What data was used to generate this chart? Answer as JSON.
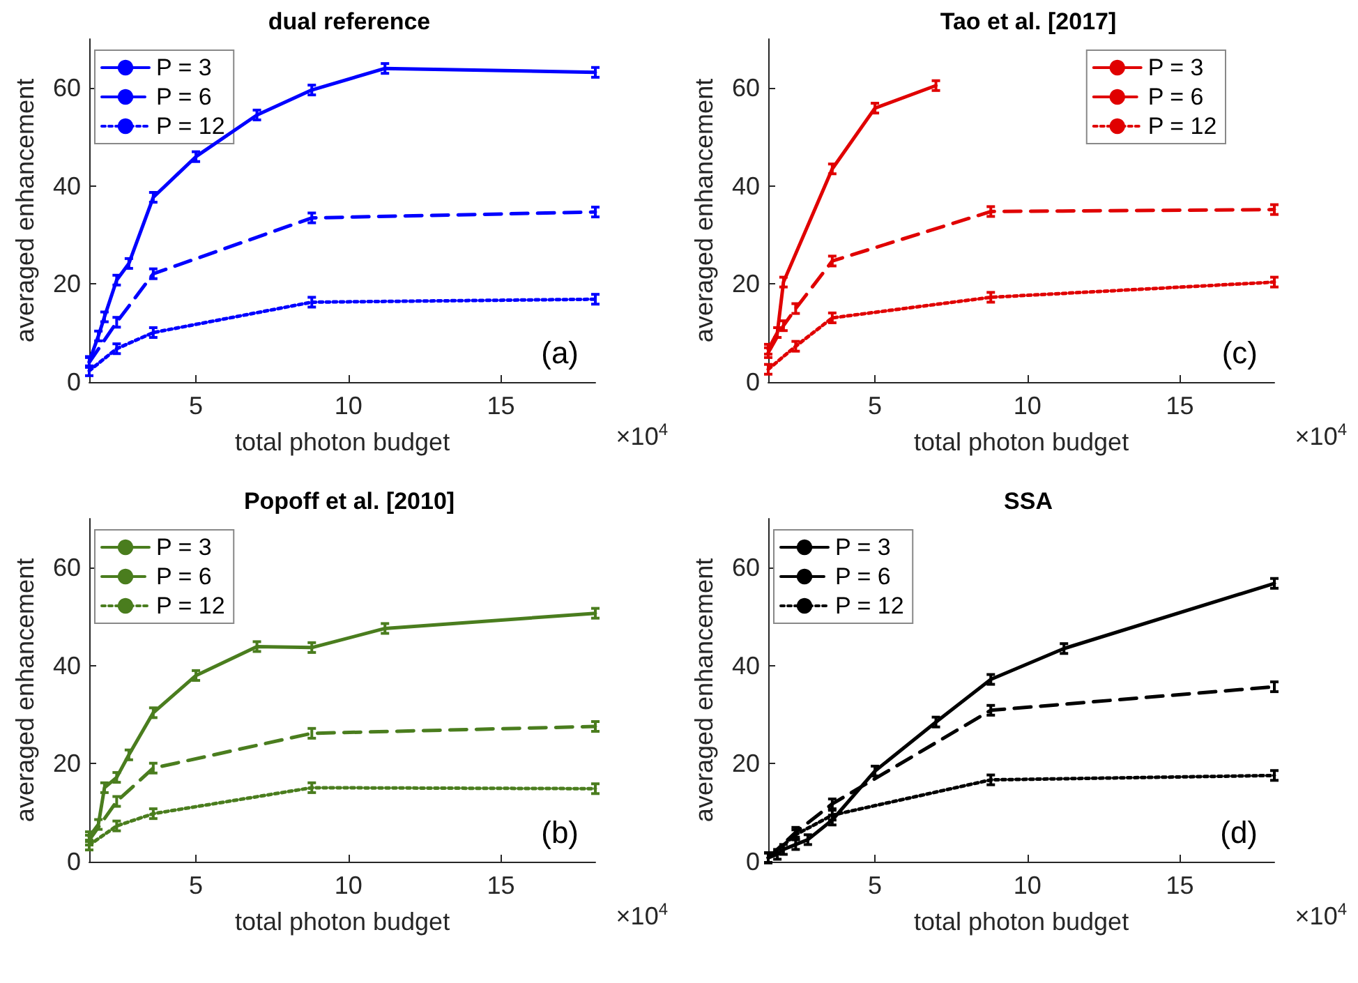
{
  "chart_data": [
    {
      "type": "line",
      "title": "dual reference",
      "xlabel": "total photon budget",
      "ylabel": "averaged enhancement",
      "annotations": [
        "(a)",
        "×10$^{4}$"
      ],
      "xlim": [
        1.5,
        18.1
      ],
      "xticks": [
        5,
        10,
        15
      ],
      "ylim": [
        0,
        70
      ],
      "yticks": [
        0,
        20,
        40,
        60
      ],
      "grid": false,
      "legend": "top left",
      "marker": "none",
      "series": [
        {
          "name": "P = 3",
          "color": "#0000ff",
          "line_style": "solid",
          "x": [
            1.5,
            1.8,
            2.0,
            2.4,
            2.8,
            3.6,
            5,
            7,
            8.8,
            11.2,
            18.1
          ],
          "values": [
            4.2,
            9.4,
            13.3,
            20.8,
            24.2,
            37.7,
            46.0,
            54.5,
            59.6,
            64.0,
            63.2
          ],
          "errors": [
            1,
            1,
            1,
            1,
            1,
            1,
            1,
            1,
            1,
            1,
            1
          ]
        },
        {
          "name": "P = 6",
          "color": "#0000ff",
          "line_style": "dashed",
          "x": [
            1.5,
            2.4,
            3.6,
            8.8,
            18.1
          ],
          "values": [
            4.0,
            12.2,
            22.1,
            33.5,
            34.7
          ],
          "errors": [
            1,
            1,
            1,
            1,
            1
          ]
        },
        {
          "name": "P = 12",
          "color": "#0000ff",
          "line_style": "dotted",
          "x": [
            1.5,
            2.4,
            3.6,
            8.8,
            18.1
          ],
          "values": [
            2.3,
            6.8,
            10.1,
            16.3,
            16.9
          ],
          "errors": [
            1,
            1,
            1,
            1,
            1
          ]
        }
      ]
    },
    {
      "type": "line",
      "title": "Tao et al. [2017]",
      "xlabel": "total photon budget",
      "ylabel": "averaged enhancement",
      "annotations": [
        "(c)",
        "×10$^{4}$"
      ],
      "xlim": [
        1.5,
        18.1
      ],
      "xticks": [
        5,
        10,
        15
      ],
      "ylim": [
        0,
        70
      ],
      "yticks": [
        0,
        20,
        40,
        60
      ],
      "grid": false,
      "legend": "top right",
      "marker": "none",
      "series": [
        {
          "name": "P = 3",
          "color": "#e00000",
          "line_style": "solid",
          "x": [
            1.5,
            1.8,
            2.0,
            3.6,
            5,
            7
          ],
          "values": [
            6.7,
            10.1,
            20.4,
            43.5,
            55.9,
            60.5
          ],
          "errors": [
            1,
            1,
            1,
            1,
            1,
            1
          ]
        },
        {
          "name": "P = 6",
          "color": "#e00000",
          "line_style": "dashed",
          "x": [
            1.5,
            2.0,
            2.4,
            3.6,
            8.8,
            18.1
          ],
          "values": [
            6.0,
            11.5,
            15.0,
            24.7,
            34.8,
            35.2
          ],
          "errors": [
            1,
            1,
            1,
            1,
            1,
            1
          ]
        },
        {
          "name": "P = 12",
          "color": "#e00000",
          "line_style": "dotted",
          "x": [
            1.5,
            2.4,
            3.6,
            8.8,
            18.1
          ],
          "values": [
            2.6,
            7.3,
            13.1,
            17.3,
            20.4
          ],
          "errors": [
            1,
            1,
            1,
            1,
            1
          ]
        }
      ]
    },
    {
      "type": "line",
      "title": "Popoff et al. [2010]",
      "xlabel": "total photon budget",
      "ylabel": "averaged enhancement",
      "annotations": [
        "(b)",
        "×10$^{4}$"
      ],
      "xlim": [
        1.5,
        18.1
      ],
      "xticks": [
        5,
        10,
        15
      ],
      "ylim": [
        0,
        70
      ],
      "yticks": [
        0,
        20,
        40,
        60
      ],
      "grid": false,
      "legend": "top left",
      "marker": "none",
      "series": [
        {
          "name": "P = 3",
          "color": "#4a7d1e",
          "line_style": "solid",
          "x": [
            1.5,
            1.8,
            2.0,
            2.4,
            2.8,
            3.6,
            5,
            7,
            8.8,
            11.2,
            18.1
          ],
          "values": [
            5.1,
            7.6,
            15.1,
            17.2,
            21.8,
            30.4,
            38.0,
            43.9,
            43.7,
            47.6,
            50.7
          ],
          "errors": [
            1,
            1,
            1,
            1,
            1,
            1,
            1,
            1,
            1,
            1,
            1
          ]
        },
        {
          "name": "P = 6",
          "color": "#4a7d1e",
          "line_style": "dashed",
          "x": [
            1.5,
            2.4,
            3.6,
            8.8,
            18.1
          ],
          "values": [
            4.4,
            12.3,
            19.1,
            26.2,
            27.6
          ],
          "errors": [
            1,
            1,
            1,
            1,
            1
          ]
        },
        {
          "name": "P = 12",
          "color": "#4a7d1e",
          "line_style": "dotted",
          "x": [
            1.5,
            2.4,
            3.6,
            8.8,
            18.1
          ],
          "values": [
            3.4,
            7.3,
            9.8,
            15.1,
            14.9
          ],
          "errors": [
            1,
            1,
            1,
            1,
            1
          ]
        }
      ]
    },
    {
      "type": "line",
      "title": "SSA",
      "xlabel": "total photon budget",
      "ylabel": "averaged enhancement",
      "annotations": [
        "(d)",
        "×10$^{4}$"
      ],
      "xlim": [
        1.5,
        18.1
      ],
      "xticks": [
        5,
        10,
        15
      ],
      "ylim": [
        0,
        70
      ],
      "yticks": [
        0,
        20,
        40,
        60
      ],
      "grid": false,
      "legend": "top left",
      "marker": "none",
      "series": [
        {
          "name": "P = 3",
          "color": "#000000",
          "line_style": "solid",
          "x": [
            1.5,
            1.8,
            2.0,
            2.4,
            2.8,
            3.6,
            5,
            7,
            8.8,
            11.2,
            18.1
          ],
          "values": [
            0.8,
            1.5,
            2.5,
            3.5,
            4.5,
            8.5,
            18.5,
            28.5,
            37.2,
            43.5,
            56.8
          ],
          "errors": [
            1,
            1,
            1,
            1,
            1,
            1,
            1,
            1,
            1,
            1,
            1
          ]
        },
        {
          "name": "P = 6",
          "color": "#000000",
          "line_style": "dashed",
          "x": [
            1.5,
            2.4,
            3.6,
            8.8,
            18.1
          ],
          "values": [
            0.8,
            6.0,
            11.8,
            30.9,
            35.7
          ],
          "errors": [
            1,
            1,
            1,
            1,
            1
          ]
        },
        {
          "name": "P = 12",
          "color": "#000000",
          "line_style": "dotted",
          "x": [
            1.5,
            2.4,
            3.6,
            8.8,
            18.1
          ],
          "values": [
            0.8,
            5.5,
            9.5,
            16.7,
            17.6
          ],
          "errors": [
            1,
            1,
            1,
            1,
            1
          ]
        }
      ]
    }
  ]
}
